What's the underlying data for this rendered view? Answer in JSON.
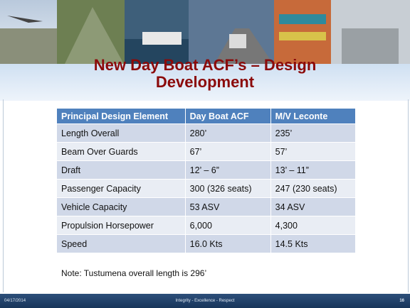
{
  "title": "New Day Boat ACF’s – Design Development",
  "table": {
    "header": [
      "Principal Design Element",
      "Day Boat ACF",
      "M/V Leconte"
    ],
    "rows": [
      [
        "Length Overall",
        "280’",
        "235’"
      ],
      [
        "Beam Over Guards",
        "67’",
        "57’"
      ],
      [
        "Draft",
        "12’ – 6”",
        "13’ – 11”"
      ],
      [
        "Passenger Capacity",
        "300 (326 seats)",
        "247 (230 seats)"
      ],
      [
        "Vehicle Capacity",
        "53 ASV",
        "34 ASV"
      ],
      [
        "Propulsion Horsepower",
        "6,000",
        "4,300"
      ],
      [
        "Speed",
        "16.0 Kts",
        "14.5 Kts"
      ]
    ]
  },
  "note": "Note: Tustumena overall length is 296’",
  "footer": {
    "date": "04/17/2014",
    "motto": "Integrity - Excellence - Respect",
    "page": "16"
  }
}
